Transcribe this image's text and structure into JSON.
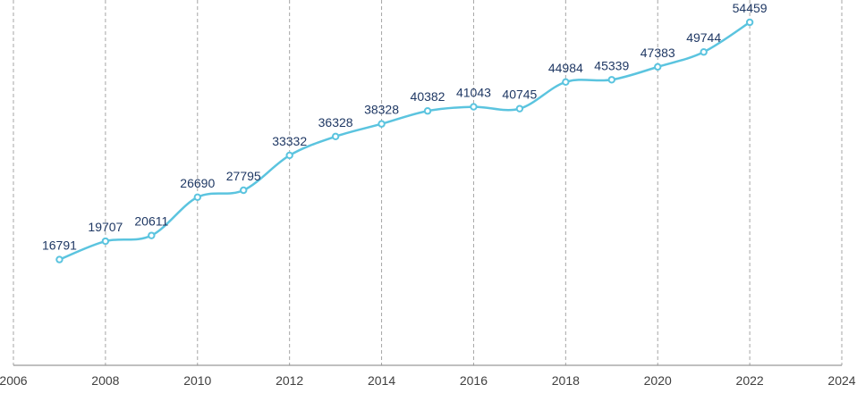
{
  "chart_data": {
    "type": "line",
    "title": "",
    "xlabel": "",
    "ylabel": "",
    "x": [
      2007,
      2008,
      2009,
      2010,
      2011,
      2012,
      2013,
      2014,
      2015,
      2016,
      2017,
      2018,
      2019,
      2020,
      2021,
      2022
    ],
    "series": [
      {
        "values": [
          16791,
          19707,
          20611,
          26690,
          27795,
          33332,
          36328,
          38328,
          40382,
          41043,
          40745,
          44984,
          45339,
          47383,
          49744,
          54459
        ]
      }
    ],
    "x_ticks": [
      "2006",
      "2008",
      "2010",
      "2012",
      "2014",
      "2016",
      "2018",
      "2020",
      "2022",
      "2024"
    ],
    "xlim": [
      2006,
      2024
    ],
    "ylim": [
      0,
      58000
    ],
    "y_axis_visible": false,
    "grid": "vertical dashed",
    "legend": "none",
    "data_labels": true,
    "smooth": true
  },
  "colors": {
    "series_line": "#5bc4df",
    "data_label": "#1f3864",
    "tick_label": "#404040",
    "axis": "#7f7f7f",
    "grid": "#a6a6a6"
  }
}
